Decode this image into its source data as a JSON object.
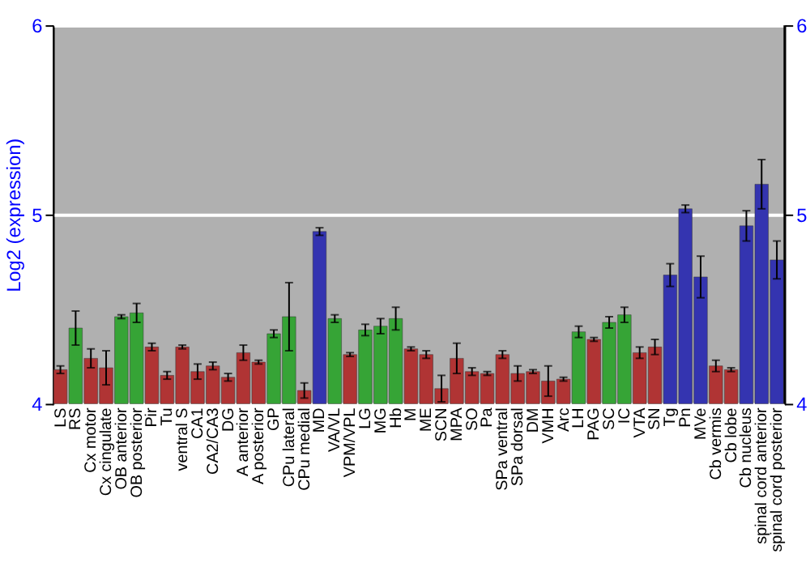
{
  "chart_data": {
    "type": "bar",
    "ylabel": "Log2 (expression)",
    "categories": [
      "LS",
      "RS",
      "Cx motor",
      "Cx cingulate",
      "OB anterior",
      "OB posterior",
      "Pir",
      "Tu",
      "ventral S",
      "CA1",
      "CA2/CA3",
      "DG",
      "A anterior",
      "A posterior",
      "GP",
      "CPu lateral",
      "CPu medial",
      "MD",
      "VA/VL",
      "VPM/VPL",
      "LG",
      "MG",
      "Hb",
      "M",
      "ME",
      "SCN",
      "MPA",
      "SO",
      "Pa",
      "SPa ventral",
      "SPa dorsal",
      "DM",
      "VMH",
      "Arc",
      "LH",
      "PAG",
      "SC",
      "IC",
      "VTA",
      "SN",
      "Tg",
      "Pn",
      "MVe",
      "Cb vermis",
      "Cb lobe",
      "Cb nucleus",
      "spinal cord anterior",
      "spinal cord posterior"
    ],
    "values": [
      4.18,
      4.4,
      4.24,
      4.19,
      4.46,
      4.48,
      4.3,
      4.15,
      4.3,
      4.17,
      4.2,
      4.14,
      4.27,
      4.22,
      4.37,
      4.46,
      4.07,
      4.91,
      4.45,
      4.26,
      4.39,
      4.41,
      4.45,
      4.29,
      4.26,
      4.08,
      4.24,
      4.17,
      4.16,
      4.26,
      4.16,
      4.17,
      4.12,
      4.13,
      4.38,
      4.34,
      4.43,
      4.47,
      4.27,
      4.3,
      4.68,
      5.03,
      4.67,
      4.2,
      4.18,
      4.94,
      5.16,
      4.76
    ],
    "errors": [
      0.02,
      0.09,
      0.05,
      0.09,
      0.01,
      0.05,
      0.02,
      0.02,
      0.01,
      0.04,
      0.02,
      0.02,
      0.04,
      0.01,
      0.02,
      0.18,
      0.04,
      0.02,
      0.02,
      0.01,
      0.03,
      0.04,
      0.06,
      0.01,
      0.02,
      0.07,
      0.08,
      0.02,
      0.01,
      0.02,
      0.04,
      0.01,
      0.08,
      0.01,
      0.03,
      0.01,
      0.03,
      0.04,
      0.03,
      0.04,
      0.06,
      0.02,
      0.11,
      0.03,
      0.01,
      0.08,
      0.13,
      0.1
    ],
    "colors": [
      "#b03434",
      "#36a436",
      "#b03434",
      "#b03434",
      "#36a436",
      "#36a436",
      "#b03434",
      "#b03434",
      "#b03434",
      "#b03434",
      "#b03434",
      "#b03434",
      "#b03434",
      "#b03434",
      "#36a436",
      "#36a436",
      "#b03434",
      "#3434b0",
      "#36a436",
      "#b03434",
      "#36a436",
      "#36a436",
      "#36a436",
      "#b03434",
      "#b03434",
      "#b03434",
      "#b03434",
      "#b03434",
      "#b03434",
      "#b03434",
      "#b03434",
      "#b03434",
      "#b03434",
      "#b03434",
      "#36a436",
      "#b03434",
      "#36a436",
      "#36a436",
      "#b03434",
      "#b03434",
      "#3434b0",
      "#3434b0",
      "#3434b0",
      "#b03434",
      "#b03434",
      "#3434b0",
      "#3434b0",
      "#3434b0"
    ],
    "ylim": [
      4,
      6
    ],
    "yticks": [
      4,
      5,
      6
    ],
    "y2lim": [
      4,
      6
    ],
    "y2ticks": [
      4,
      5,
      6
    ],
    "grid": "y"
  }
}
